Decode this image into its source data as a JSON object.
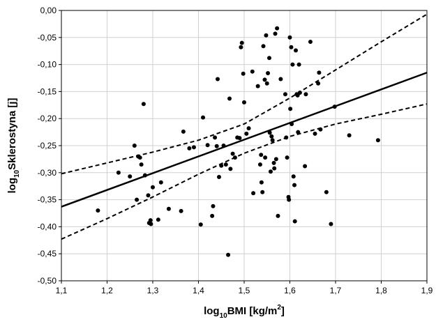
{
  "chart_data": {
    "type": "scatter",
    "xlabel": {
      "base": "log",
      "sub": "10",
      "rest": "BMI [kg/m",
      "sup": "2",
      "end": "]"
    },
    "ylabel": {
      "base": "log",
      "sub": "10",
      "rest": "Sklerostyna [j]"
    },
    "xlim": [
      1.1,
      1.9
    ],
    "ylim": [
      -0.5,
      0.0
    ],
    "x_ticks": [
      "1,1",
      "1,2",
      "1,3",
      "1,4",
      "1,5",
      "1,6",
      "1,7",
      "1,8",
      "1,9"
    ],
    "y_ticks": [
      "0,00",
      "-0,05",
      "-0,10",
      "-0,15",
      "-0,20",
      "-0,25",
      "-0,30",
      "-0,35",
      "-0,40",
      "-0,45",
      "-0,50"
    ],
    "grid": true,
    "points": [
      [
        1.18,
        -0.37
      ],
      [
        1.225,
        -0.3
      ],
      [
        1.25,
        -0.307
      ],
      [
        1.26,
        -0.25
      ],
      [
        1.265,
        -0.35
      ],
      [
        1.268,
        -0.27
      ],
      [
        1.272,
        -0.272
      ],
      [
        1.275,
        -0.285
      ],
      [
        1.28,
        -0.173
      ],
      [
        1.283,
        -0.305
      ],
      [
        1.29,
        -0.342
      ],
      [
        1.292,
        -0.393
      ],
      [
        1.295,
        -0.388
      ],
      [
        1.296,
        -0.395
      ],
      [
        1.3,
        -0.327
      ],
      [
        1.312,
        -0.387
      ],
      [
        1.318,
        -0.318
      ],
      [
        1.335,
        -0.367
      ],
      [
        1.362,
        -0.371
      ],
      [
        1.367,
        -0.224
      ],
      [
        1.38,
        -0.255
      ],
      [
        1.39,
        -0.253
      ],
      [
        1.405,
        -0.396
      ],
      [
        1.41,
        -0.198
      ],
      [
        1.42,
        -0.249
      ],
      [
        1.43,
        -0.38
      ],
      [
        1.432,
        -0.362
      ],
      [
        1.436,
        -0.235
      ],
      [
        1.44,
        -0.251
      ],
      [
        1.442,
        -0.127
      ],
      [
        1.445,
        -0.308
      ],
      [
        1.45,
        -0.287
      ],
      [
        1.455,
        -0.25
      ],
      [
        1.46,
        -0.285
      ],
      [
        1.465,
        -0.452
      ],
      [
        1.468,
        -0.163
      ],
      [
        1.47,
        -0.293
      ],
      [
        1.475,
        -0.265
      ],
      [
        1.48,
        -0.272
      ],
      [
        1.485,
        -0.235
      ],
      [
        1.49,
        -0.236
      ],
      [
        1.493,
        -0.068
      ],
      [
        1.495,
        -0.06
      ],
      [
        1.498,
        -0.117
      ],
      [
        1.5,
        -0.17
      ],
      [
        1.505,
        -0.228
      ],
      [
        1.51,
        -0.218
      ],
      [
        1.518,
        -0.113
      ],
      [
        1.52,
        -0.338
      ],
      [
        1.53,
        -0.14
      ],
      [
        1.535,
        -0.285
      ],
      [
        1.537,
        -0.267
      ],
      [
        1.538,
        -0.318
      ],
      [
        1.54,
        -0.336
      ],
      [
        1.542,
        -0.066
      ],
      [
        1.545,
        -0.128
      ],
      [
        1.546,
        -0.272
      ],
      [
        1.548,
        -0.046
      ],
      [
        1.55,
        -0.135
      ],
      [
        1.552,
        -0.116
      ],
      [
        1.555,
        -0.088
      ],
      [
        1.556,
        -0.226
      ],
      [
        1.558,
        -0.298
      ],
      [
        1.56,
        -0.233
      ],
      [
        1.562,
        -0.24
      ],
      [
        1.565,
        -0.282
      ],
      [
        1.566,
        -0.292
      ],
      [
        1.568,
        -0.043
      ],
      [
        1.57,
        -0.275
      ],
      [
        1.572,
        -0.033
      ],
      [
        1.574,
        -0.38
      ],
      [
        1.58,
        -0.127
      ],
      [
        1.59,
        -0.155
      ],
      [
        1.592,
        -0.235
      ],
      [
        1.594,
        -0.272
      ],
      [
        1.597,
        -0.345
      ],
      [
        1.598,
        -0.35
      ],
      [
        1.6,
        -0.05
      ],
      [
        1.601,
        -0.182
      ],
      [
        1.603,
        -0.068
      ],
      [
        1.604,
        -0.21
      ],
      [
        1.606,
        -0.1
      ],
      [
        1.608,
        -0.307
      ],
      [
        1.61,
        -0.323
      ],
      [
        1.611,
        -0.39
      ],
      [
        1.613,
        -0.074
      ],
      [
        1.615,
        -0.155
      ],
      [
        1.617,
        -0.157
      ],
      [
        1.618,
        -0.225
      ],
      [
        1.62,
        -0.1
      ],
      [
        1.622,
        -0.152
      ],
      [
        1.633,
        -0.288
      ],
      [
        1.635,
        -0.155
      ],
      [
        1.645,
        -0.058
      ],
      [
        1.655,
        -0.228
      ],
      [
        1.662,
        -0.135
      ],
      [
        1.664,
        -0.115
      ],
      [
        1.667,
        -0.22
      ],
      [
        1.68,
        -0.336
      ],
      [
        1.69,
        -0.395
      ],
      [
        1.698,
        -0.178
      ],
      [
        1.73,
        -0.231
      ],
      [
        1.793,
        -0.24
      ]
    ],
    "fit_line": {
      "x": [
        1.1,
        1.9
      ],
      "y": [
        -0.363,
        -0.115
      ]
    },
    "confidence_band": {
      "x": [
        1.1,
        1.2,
        1.3,
        1.4,
        1.5,
        1.6,
        1.7,
        1.8,
        1.9
      ],
      "upper": [
        -0.302,
        -0.282,
        -0.262,
        -0.24,
        -0.21,
        -0.162,
        -0.11,
        -0.058,
        -0.007
      ],
      "lower": [
        -0.423,
        -0.385,
        -0.345,
        -0.303,
        -0.264,
        -0.233,
        -0.21,
        -0.192,
        -0.173
      ]
    }
  }
}
